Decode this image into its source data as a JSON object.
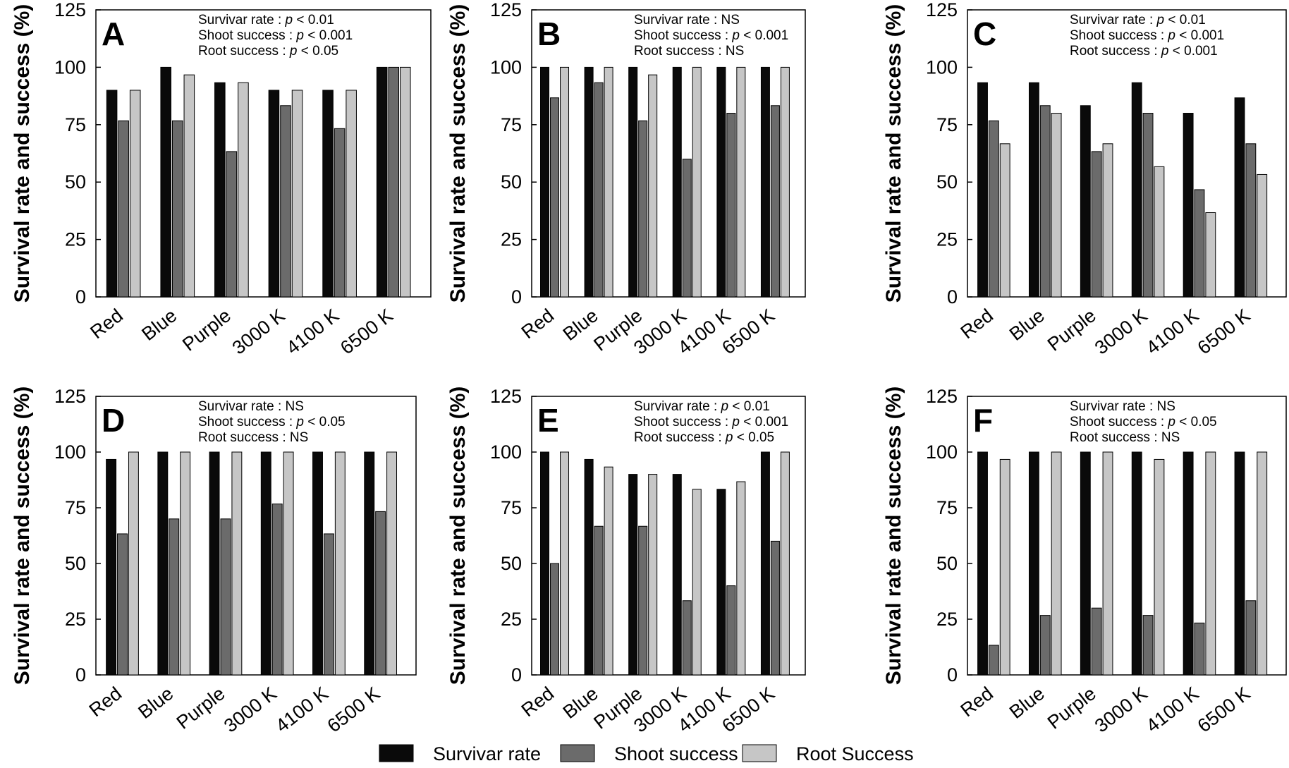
{
  "colors": {
    "survivar_rate": "#0a0a0a",
    "shoot_success": "#6b6b6b",
    "root_success": "#c6c6c6"
  },
  "legend": [
    {
      "label": "Survivar rate",
      "color": "#0a0a0a"
    },
    {
      "label": "Shoot success",
      "color": "#6b6b6b"
    },
    {
      "label": "Root Success",
      "color": "#c6c6c6"
    }
  ],
  "chart_data": [
    {
      "type": "bar",
      "panel": "A",
      "categories": [
        "Red",
        "Blue",
        "Purple",
        "3000 K",
        "4100 K",
        "6500 K"
      ],
      "ylabel": "Survival rate and success (%)",
      "ylim": [
        0,
        125
      ],
      "yticks": [
        0,
        25,
        50,
        75,
        100,
        125
      ],
      "stats": [
        {
          "label": "Survivar rate",
          "p": "p",
          "value": "< 0.01"
        },
        {
          "label": "Shoot success",
          "p": "p",
          "value": "< 0.001"
        },
        {
          "label": "Root success",
          "p": "p",
          "value": "< 0.05"
        }
      ],
      "series": [
        {
          "name": "Survivar rate",
          "values": [
            90,
            100,
            93.3,
            90,
            90,
            100
          ]
        },
        {
          "name": "Shoot success",
          "values": [
            76.7,
            76.7,
            63.3,
            83.3,
            73.3,
            100
          ]
        },
        {
          "name": "Root Success",
          "values": [
            90,
            96.7,
            93.3,
            90,
            90,
            100
          ]
        }
      ]
    },
    {
      "type": "bar",
      "panel": "B",
      "categories": [
        "Red",
        "Blue",
        "Purple",
        "3000 K",
        "4100 K",
        "6500 K"
      ],
      "ylabel": "Survival rate and success (%)",
      "ylim": [
        0,
        125
      ],
      "yticks": [
        0,
        25,
        50,
        75,
        100,
        125
      ],
      "stats": [
        {
          "label": "Survivar rate",
          "p": "",
          "value": "NS"
        },
        {
          "label": "Shoot success",
          "p": "p",
          "value": "< 0.001"
        },
        {
          "label": "Root success",
          "p": "",
          "value": "NS"
        }
      ],
      "series": [
        {
          "name": "Survivar rate",
          "values": [
            100,
            100,
            100,
            100,
            100,
            100
          ]
        },
        {
          "name": "Shoot success",
          "values": [
            86.7,
            93.3,
            76.7,
            60,
            80,
            83.3
          ]
        },
        {
          "name": "Root Success",
          "values": [
            100,
            100,
            96.7,
            100,
            100,
            100
          ]
        }
      ]
    },
    {
      "type": "bar",
      "panel": "C",
      "categories": [
        "Red",
        "Blue",
        "Purple",
        "3000 K",
        "4100 K",
        "6500 K"
      ],
      "ylabel": "Survival rate and success (%)",
      "ylim": [
        0,
        125
      ],
      "yticks": [
        0,
        25,
        50,
        75,
        100,
        125
      ],
      "stats": [
        {
          "label": "Survivar rate",
          "p": "p",
          "value": "< 0.01"
        },
        {
          "label": "Shoot success",
          "p": "p",
          "value": "< 0.001"
        },
        {
          "label": "Root success",
          "p": "p",
          "value": "< 0.001"
        }
      ],
      "series": [
        {
          "name": "Survivar rate",
          "values": [
            93.3,
            93.3,
            83.3,
            93.3,
            80,
            86.7
          ]
        },
        {
          "name": "Shoot success",
          "values": [
            76.7,
            83.3,
            63.3,
            80,
            46.7,
            66.7
          ]
        },
        {
          "name": "Root Success",
          "values": [
            66.7,
            80,
            66.7,
            56.7,
            36.7,
            53.3
          ]
        }
      ]
    },
    {
      "type": "bar",
      "panel": "D",
      "categories": [
        "Red",
        "Blue",
        "Purple",
        "3000 K",
        "4100 K",
        "6500 K"
      ],
      "ylabel": "Survival rate and success (%)",
      "ylim": [
        0,
        125
      ],
      "yticks": [
        0,
        25,
        50,
        75,
        100,
        125
      ],
      "stats": [
        {
          "label": "Survivar rate",
          "p": "",
          "value": "NS"
        },
        {
          "label": "Shoot success",
          "p": "p",
          "value": "< 0.05"
        },
        {
          "label": "Root success",
          "p": "",
          "value": "NS"
        }
      ],
      "series": [
        {
          "name": "Survivar rate",
          "values": [
            96.7,
            100,
            100,
            100,
            100,
            100
          ]
        },
        {
          "name": "Shoot success",
          "values": [
            63.3,
            70,
            70,
            76.7,
            63.3,
            73.3
          ]
        },
        {
          "name": "Root Success",
          "values": [
            100,
            100,
            100,
            100,
            100,
            100
          ]
        }
      ]
    },
    {
      "type": "bar",
      "panel": "E",
      "categories": [
        "Red",
        "Blue",
        "Purple",
        "3000 K",
        "4100 K",
        "6500 K"
      ],
      "ylabel": "Survival rate and success (%)",
      "ylim": [
        0,
        125
      ],
      "yticks": [
        0,
        25,
        50,
        75,
        100,
        125
      ],
      "stats": [
        {
          "label": "Survivar rate",
          "p": "p",
          "value": "< 0.01"
        },
        {
          "label": "Shoot success",
          "p": "p",
          "value": "< 0.001"
        },
        {
          "label": "Root success",
          "p": "p",
          "value": "< 0.05"
        }
      ],
      "series": [
        {
          "name": "Survivar rate",
          "values": [
            100,
            96.7,
            90,
            90,
            83.3,
            100
          ]
        },
        {
          "name": "Shoot success",
          "values": [
            50,
            66.7,
            66.7,
            33.3,
            40,
            60
          ]
        },
        {
          "name": "Root Success",
          "values": [
            100,
            93.3,
            90,
            83.3,
            86.7,
            100
          ]
        }
      ]
    },
    {
      "type": "bar",
      "panel": "F",
      "categories": [
        "Red",
        "Blue",
        "Purple",
        "3000 K",
        "4100 K",
        "6500 K"
      ],
      "ylabel": "Survival rate and success (%)",
      "ylim": [
        0,
        125
      ],
      "yticks": [
        0,
        25,
        50,
        75,
        100,
        125
      ],
      "stats": [
        {
          "label": "Survivar rate",
          "p": "",
          "value": "NS"
        },
        {
          "label": "Shoot success",
          "p": "p",
          "value": "< 0.05"
        },
        {
          "label": "Root success",
          "p": "",
          "value": "NS"
        }
      ],
      "series": [
        {
          "name": "Survivar rate",
          "values": [
            100,
            100,
            100,
            100,
            100,
            100
          ]
        },
        {
          "name": "Shoot success",
          "values": [
            13.3,
            26.7,
            30,
            26.7,
            23.3,
            33.3
          ]
        },
        {
          "name": "Root Success",
          "values": [
            96.7,
            100,
            100,
            96.7,
            100,
            100
          ]
        }
      ]
    }
  ]
}
